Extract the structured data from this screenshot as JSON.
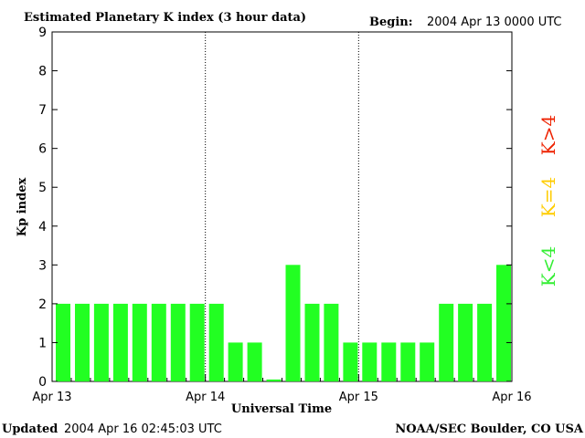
{
  "chart_data": {
    "type": "bar",
    "title": "Estimated Planetary K index (3 hour data)",
    "begin_label": "Begin:",
    "begin_value": "2004 Apr 13 0000 UTC",
    "xlabel": "Universal Time",
    "ylabel": "Kp index",
    "ylim": [
      0,
      9
    ],
    "yticks": [
      "0",
      "1",
      "2",
      "3",
      "4",
      "5",
      "6",
      "7",
      "8",
      "9"
    ],
    "xticks": [
      "Apr 13",
      "Apr 14",
      "Apr 15",
      "Apr 16"
    ],
    "x_range_hours": [
      0,
      72
    ],
    "interval_hours": 3,
    "values": [
      2,
      2,
      2,
      2,
      2,
      2,
      2,
      2,
      2,
      1,
      1,
      0.05,
      3,
      2,
      2,
      1,
      1,
      1,
      1,
      1,
      2,
      2,
      2,
      3
    ],
    "bar_color": "#22ff22",
    "grid": false,
    "day_separators": "dotted vertical lines",
    "legend": [
      {
        "label": "K<4",
        "color": "#33ee33"
      },
      {
        "label": "K=4",
        "color": "#ffcc00"
      },
      {
        "label": "K>4",
        "color": "#ee2200"
      }
    ],
    "legend_placement": "right, vertical"
  },
  "footer": {
    "updated_label": "Updated",
    "updated_value": "2004 Apr 16 02:45:03 UTC",
    "source": "NOAA/SEC Boulder, CO USA"
  }
}
